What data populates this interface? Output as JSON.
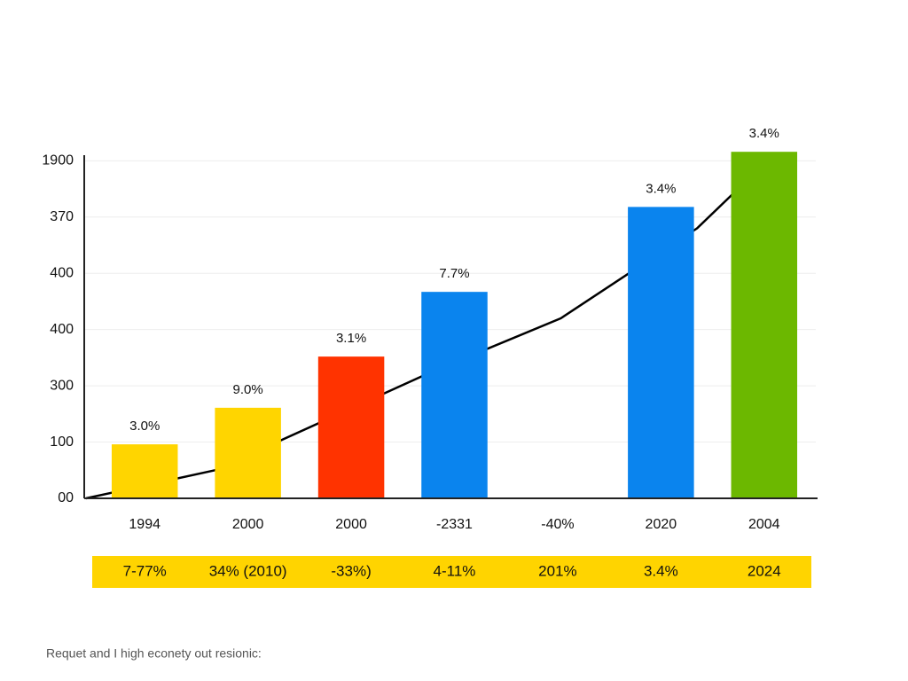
{
  "chart_data": {
    "type": "bar",
    "categories": [
      "1994",
      "2000",
      "2000",
      "-2331",
      "-40%",
      "2020",
      "2004"
    ],
    "values": [
      0.96,
      1.61,
      2.52,
      3.67,
      null,
      5.18,
      6.16
    ],
    "colors": [
      "#ffd500",
      "#ffd500",
      "#ff3300",
      "#0a84ee",
      null,
      "#0a84ee",
      "#6cb800"
    ],
    "annotations": [
      "3.0%",
      "9.0%",
      "3.1%",
      "7.7%",
      null,
      "3.4%",
      "3.4%"
    ],
    "line": {
      "color": "#000000",
      "x": [
        -0.57,
        0.68,
        2.77,
        4.03,
        5.35,
        5.86
      ],
      "values": [
        0,
        0.5,
        2.24,
        3.2,
        4.8,
        5.7
      ]
    },
    "ylim": [
      0,
      6.1
    ],
    "yticks": [
      {
        "value": 0,
        "label": "00"
      },
      {
        "value": 1,
        "label": "100"
      },
      {
        "value": 2,
        "label": "300"
      },
      {
        "value": 3,
        "label": "400"
      },
      {
        "value": 4,
        "label": "400"
      },
      {
        "value": 5,
        "label": "370"
      },
      {
        "value": 6,
        "label": "1900"
      }
    ],
    "grid": true,
    "table_row": [
      "7-77%",
      "34% (2010)",
      "-33%)",
      "4-11%",
      "201%",
      "3.4%",
      "2024"
    ],
    "table_color": "#ffd400",
    "footnote": "Requet and I high econety out resionic:"
  }
}
